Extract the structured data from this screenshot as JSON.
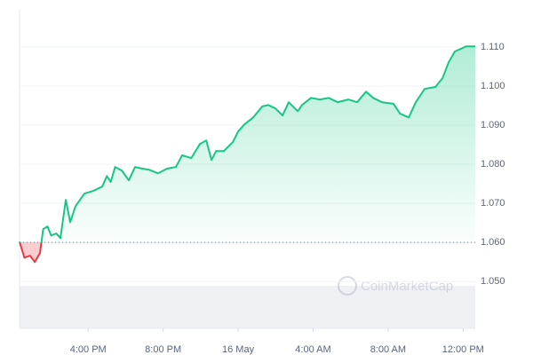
{
  "chart_data": {
    "type": "line",
    "x": [
      -11.66,
      -11.4,
      -11.1,
      -10.85,
      -10.57,
      -10.4,
      -10.17,
      -9.98,
      -9.7,
      -9.48,
      -9.19,
      -8.96,
      -8.67,
      -8.2,
      -7.73,
      -7.25,
      -7.0,
      -6.8,
      -6.56,
      -6.2,
      -5.83,
      -5.5,
      -5.12,
      -4.74,
      -4.27,
      -3.79,
      -3.32,
      -2.99,
      -2.5,
      -2.04,
      -1.7,
      -1.42,
      -1.18,
      -0.76,
      -0.28,
      0,
      0.33,
      0.81,
      1.28,
      1.61,
      1.99,
      2.37,
      2.7,
      3.18,
      3.41,
      3.89,
      4.36,
      4.83,
      5.31,
      5.88,
      6.35,
      6.82,
      7.2,
      7.68,
      8.29,
      8.63,
      9.1,
      9.48,
      9.95,
      10.52,
      10.9,
      11.23,
      11.56,
      12.18,
      12.65
    ],
    "series": [
      {
        "values": [
          1.0602,
          1.0561,
          1.0566,
          1.055,
          1.0573,
          1.0634,
          1.0641,
          1.0618,
          1.0623,
          1.0611,
          1.0709,
          1.0652,
          1.0693,
          1.0725,
          1.0732,
          1.0743,
          1.077,
          1.0755,
          1.0793,
          1.0784,
          1.0759,
          1.0793,
          1.0789,
          1.0786,
          1.0777,
          1.0789,
          1.0793,
          1.0823,
          1.0816,
          1.0852,
          1.0861,
          1.0811,
          1.0834,
          1.0834,
          1.0857,
          1.0884,
          1.0902,
          1.092,
          1.0948,
          1.0952,
          1.0943,
          1.0925,
          1.0959,
          1.0936,
          1.0952,
          1.097,
          1.0966,
          1.097,
          1.0959,
          1.0966,
          1.0959,
          1.0986,
          1.097,
          1.0959,
          1.0955,
          1.093,
          1.092,
          1.0959,
          1.0993,
          1.0998,
          1.102,
          1.1061,
          1.1089,
          1.1102,
          1.1102
        ],
        "color": "#16c784",
        "down_color": "#ea3943"
      }
    ],
    "baseline": 1.06,
    "xlim": [
      -11.66,
      12.65
    ],
    "xticks": [
      {
        "value": -8,
        "label": "4:00 PM"
      },
      {
        "value": -4,
        "label": "8:00 PM"
      },
      {
        "value": 0,
        "label": "16 May"
      },
      {
        "value": 4,
        "label": "4:00 AM"
      },
      {
        "value": 8,
        "label": "8:00 AM"
      },
      {
        "value": 12,
        "label": "12:00 PM"
      }
    ],
    "ylim": [
      1.038,
      1.1198
    ],
    "yticks": [
      {
        "value": 1.05,
        "label": "1.050"
      },
      {
        "value": 1.06,
        "label": "1.060"
      },
      {
        "value": 1.07,
        "label": "1.070"
      },
      {
        "value": 1.08,
        "label": "1.080"
      },
      {
        "value": 1.09,
        "label": "1.090"
      },
      {
        "value": 1.1,
        "label": "1.100"
      },
      {
        "value": 1.11,
        "label": "1.110"
      }
    ],
    "grid": true,
    "watermark": "CoinMarketCap"
  }
}
